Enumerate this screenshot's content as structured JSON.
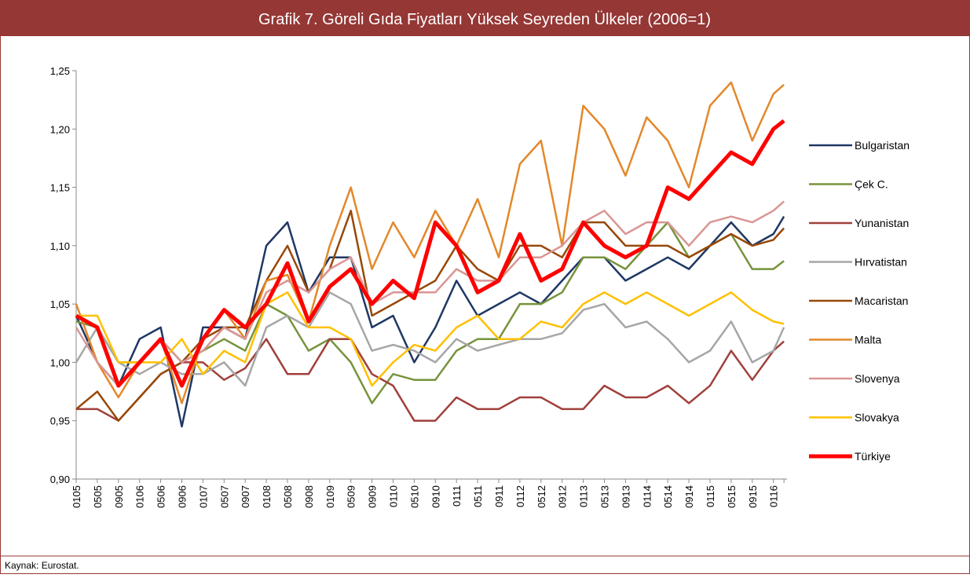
{
  "chart_data": {
    "type": "line",
    "title": "Grafik 7. Göreli Gıda Fiyatları Yüksek Seyreden Ülkeler (2006=1)",
    "source": "Kaynak: Eurostat.",
    "categories": [
      "0105",
      "0505",
      "0905",
      "0106",
      "0506",
      "0906",
      "0107",
      "0507",
      "0907",
      "0108",
      "0508",
      "0908",
      "0109",
      "0509",
      "0909",
      "0110",
      "0510",
      "0910",
      "0111",
      "0511",
      "0911",
      "0112",
      "0512",
      "0912",
      "0113",
      "0513",
      "0913",
      "0114",
      "0514",
      "0914",
      "0115",
      "0515",
      "0915",
      "0116",
      null
    ],
    "ylim": [
      0.9,
      1.25
    ],
    "yticks": [
      {
        "value": 0.9,
        "label": "0,90"
      },
      {
        "value": 0.95,
        "label": "0,95"
      },
      {
        "value": 1.0,
        "label": "1,00"
      },
      {
        "value": 1.05,
        "label": "1,05"
      },
      {
        "value": 1.1,
        "label": "1,10"
      },
      {
        "value": 1.15,
        "label": "1,15"
      },
      {
        "value": 1.2,
        "label": "1,20"
      },
      {
        "value": 1.25,
        "label": "1,25"
      }
    ],
    "grid": false,
    "legend": "right",
    "series": [
      {
        "name": "Bulgaristan",
        "color": "#1f3864",
        "width": 2.5,
        "values": [
          1.04,
          1.0,
          0.98,
          1.02,
          1.03,
          0.945,
          1.03,
          1.03,
          1.02,
          1.1,
          1.12,
          1.06,
          1.09,
          1.09,
          1.03,
          1.04,
          1.0,
          1.03,
          1.07,
          1.04,
          1.05,
          1.06,
          1.05,
          1.07,
          1.09,
          1.09,
          1.07,
          1.08,
          1.09,
          1.08,
          1.1,
          1.12,
          1.1,
          1.11,
          1.125
        ]
      },
      {
        "name": "Çek C.",
        "color": "#77933c",
        "width": 2.5,
        "values": [
          1.035,
          1.03,
          1.0,
          1.0,
          1.02,
          1.0,
          1.01,
          1.02,
          1.01,
          1.05,
          1.04,
          1.01,
          1.02,
          1.0,
          0.965,
          0.99,
          0.985,
          0.985,
          1.01,
          1.02,
          1.02,
          1.05,
          1.05,
          1.06,
          1.09,
          1.09,
          1.08,
          1.1,
          1.12,
          1.09,
          1.1,
          1.11,
          1.08,
          1.08,
          1.087
        ]
      },
      {
        "name": "Yunanistan",
        "color": "#a0403c",
        "width": 2.5,
        "values": [
          0.96,
          0.96,
          0.95,
          0.97,
          0.99,
          1.0,
          1.0,
          0.985,
          0.995,
          1.02,
          0.99,
          0.99,
          1.02,
          1.02,
          0.99,
          0.98,
          0.95,
          0.95,
          0.97,
          0.96,
          0.96,
          0.97,
          0.97,
          0.96,
          0.96,
          0.98,
          0.97,
          0.97,
          0.98,
          0.965,
          0.98,
          1.01,
          0.985,
          1.01,
          1.018
        ]
      },
      {
        "name": "Hırvatistan",
        "color": "#a6a6a6",
        "width": 2.5,
        "values": [
          1.0,
          1.03,
          1.0,
          0.99,
          1.0,
          0.99,
          0.99,
          1.0,
          0.98,
          1.03,
          1.04,
          1.03,
          1.06,
          1.05,
          1.01,
          1.015,
          1.01,
          1.0,
          1.02,
          1.01,
          1.015,
          1.02,
          1.02,
          1.025,
          1.045,
          1.05,
          1.03,
          1.035,
          1.02,
          1.0,
          1.01,
          1.035,
          1.0,
          1.01,
          1.03
        ]
      },
      {
        "name": "Macaristan",
        "color": "#984807",
        "width": 2.5,
        "values": [
          0.96,
          0.975,
          0.95,
          0.97,
          0.99,
          1.0,
          1.02,
          1.03,
          1.03,
          1.07,
          1.1,
          1.06,
          1.08,
          1.13,
          1.04,
          1.05,
          1.06,
          1.07,
          1.1,
          1.08,
          1.07,
          1.1,
          1.1,
          1.09,
          1.12,
          1.12,
          1.1,
          1.1,
          1.1,
          1.09,
          1.1,
          1.11,
          1.1,
          1.105,
          1.115
        ]
      },
      {
        "name": "Malta",
        "color": "#e3882a",
        "width": 2.5,
        "values": [
          1.05,
          1.0,
          0.97,
          1.0,
          1.02,
          0.965,
          1.02,
          1.045,
          1.02,
          1.07,
          1.075,
          1.035,
          1.1,
          1.15,
          1.08,
          1.12,
          1.09,
          1.13,
          1.1,
          1.14,
          1.09,
          1.17,
          1.19,
          1.1,
          1.22,
          1.2,
          1.16,
          1.21,
          1.19,
          1.15,
          1.22,
          1.24,
          1.19,
          1.23,
          1.238
        ]
      },
      {
        "name": "Slovenya",
        "color": "#d99694",
        "width": 2.5,
        "values": [
          1.03,
          1.0,
          0.98,
          1.0,
          1.02,
          1.0,
          1.01,
          1.03,
          1.02,
          1.06,
          1.07,
          1.06,
          1.08,
          1.09,
          1.05,
          1.06,
          1.06,
          1.06,
          1.08,
          1.07,
          1.07,
          1.09,
          1.09,
          1.1,
          1.12,
          1.13,
          1.11,
          1.12,
          1.12,
          1.1,
          1.12,
          1.125,
          1.12,
          1.13,
          1.138
        ]
      },
      {
        "name": "Slovakya",
        "color": "#ffc000",
        "width": 2.5,
        "values": [
          1.04,
          1.04,
          1.0,
          1.0,
          1.0,
          1.02,
          0.99,
          1.01,
          1.0,
          1.05,
          1.06,
          1.03,
          1.03,
          1.02,
          0.98,
          1.0,
          1.015,
          1.01,
          1.03,
          1.04,
          1.02,
          1.02,
          1.035,
          1.03,
          1.05,
          1.06,
          1.05,
          1.06,
          1.05,
          1.04,
          1.05,
          1.06,
          1.045,
          1.035,
          1.033
        ]
      },
      {
        "name": "Türkiye",
        "color": "#ff0000",
        "width": 5,
        "values": [
          1.04,
          1.03,
          0.98,
          1.0,
          1.02,
          0.98,
          1.02,
          1.045,
          1.03,
          1.05,
          1.085,
          1.035,
          1.065,
          1.08,
          1.05,
          1.07,
          1.055,
          1.12,
          1.1,
          1.06,
          1.07,
          1.11,
          1.07,
          1.08,
          1.12,
          1.1,
          1.09,
          1.1,
          1.15,
          1.14,
          1.16,
          1.18,
          1.17,
          1.2,
          1.207
        ]
      }
    ]
  }
}
